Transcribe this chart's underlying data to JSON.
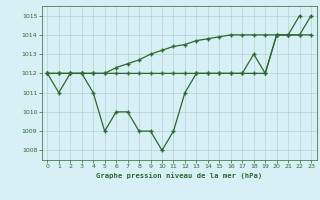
{
  "title": "Graphe pression niveau de la mer (hPa)",
  "background_color": "#d6f0f5",
  "grid_color": "#b0cccc",
  "line_color": "#2d6a2d",
  "xlim": [
    -0.5,
    23.5
  ],
  "ylim": [
    1007.5,
    1015.5
  ],
  "yticks": [
    1008,
    1009,
    1010,
    1011,
    1012,
    1013,
    1014,
    1015
  ],
  "xticks": [
    0,
    1,
    2,
    3,
    4,
    5,
    6,
    7,
    8,
    9,
    10,
    11,
    12,
    13,
    14,
    15,
    16,
    17,
    18,
    19,
    20,
    21,
    22,
    23
  ],
  "line1_x": [
    0,
    1,
    2,
    3,
    4,
    5,
    6,
    7,
    8,
    9,
    10,
    11,
    12,
    13,
    14,
    15,
    16,
    17,
    18,
    19,
    20,
    21,
    22
  ],
  "line1_y": [
    1012,
    1011,
    1012,
    1012,
    1011,
    1009,
    1010,
    1010,
    1009,
    1009,
    1008,
    1009,
    1011,
    1012,
    1012,
    1012,
    1012,
    1012,
    1013,
    1012,
    1014,
    1014,
    1015
  ],
  "line2_x": [
    0,
    1,
    2,
    3,
    4,
    5,
    6,
    7,
    8,
    9,
    10,
    11,
    12,
    13,
    14,
    15,
    16,
    17,
    18,
    19,
    20,
    21,
    22,
    23
  ],
  "line2_y": [
    1012,
    1012,
    1012,
    1012,
    1012,
    1012,
    1012,
    1012,
    1012,
    1012,
    1012,
    1012,
    1012,
    1012,
    1012,
    1012,
    1012,
    1012,
    1012,
    1012,
    1014,
    1014,
    1014,
    1014
  ],
  "line3_x": [
    0,
    1,
    2,
    3,
    4,
    5,
    6,
    7,
    8,
    9,
    10,
    11,
    12,
    13,
    14,
    15,
    16,
    17,
    18,
    19,
    20,
    21,
    22,
    23
  ],
  "line3_y": [
    1012,
    1012,
    1012,
    1012,
    1012,
    1012,
    1012.3,
    1012.5,
    1012.7,
    1013,
    1013.2,
    1013.4,
    1013.5,
    1013.7,
    1013.8,
    1013.9,
    1014,
    1014,
    1014,
    1014,
    1014,
    1014,
    1014,
    1015
  ]
}
